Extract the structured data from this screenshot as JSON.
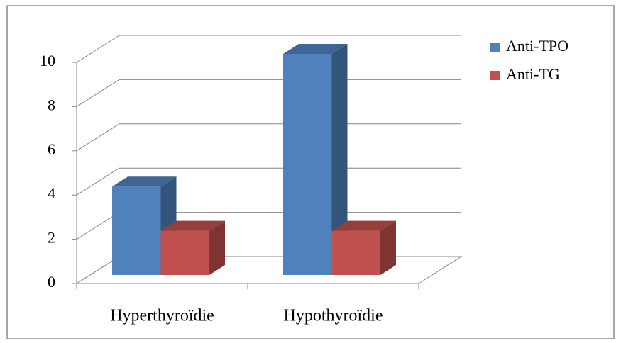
{
  "chart_data": {
    "type": "bar3d",
    "categories": [
      "Hyperthyroïdie",
      "Hypothyroïdie"
    ],
    "series": [
      {
        "name": "Anti-TPO",
        "color": "#4f81bd",
        "values": [
          4,
          10
        ]
      },
      {
        "name": "Anti-TG",
        "color": "#c0504d",
        "values": [
          2,
          2
        ]
      }
    ],
    "ylim": [
      0,
      10
    ],
    "yticks": [
      0,
      2,
      4,
      6,
      8,
      10
    ],
    "grid": true,
    "legend": "right"
  }
}
